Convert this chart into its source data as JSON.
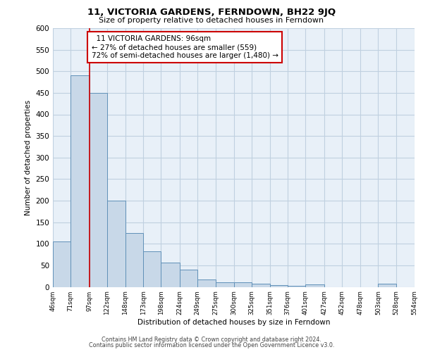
{
  "title": "11, VICTORIA GARDENS, FERNDOWN, BH22 9JQ",
  "subtitle": "Size of property relative to detached houses in Ferndown",
  "xlabel": "Distribution of detached houses by size in Ferndown",
  "ylabel": "Number of detached properties",
  "footer_line1": "Contains HM Land Registry data © Crown copyright and database right 2024.",
  "footer_line2": "Contains public sector information licensed under the Open Government Licence v3.0.",
  "annotation_line1": "11 VICTORIA GARDENS: 96sqm",
  "annotation_line2": "← 27% of detached houses are smaller (559)",
  "annotation_line3": "72% of semi-detached houses are larger (1,480) →",
  "property_sqm": 96,
  "bar_left_edges": [
    46,
    71,
    97,
    122,
    148,
    173,
    198,
    224,
    249,
    275,
    300,
    325,
    351,
    376,
    401,
    427,
    452,
    478,
    503,
    528
  ],
  "bar_widths": [
    25,
    26,
    25,
    26,
    25,
    25,
    26,
    25,
    26,
    25,
    25,
    26,
    25,
    25,
    26,
    25,
    26,
    25,
    25,
    26
  ],
  "bar_heights": [
    105,
    490,
    450,
    200,
    125,
    82,
    57,
    40,
    17,
    11,
    11,
    8,
    4,
    2,
    5,
    0,
    0,
    0,
    7,
    0
  ],
  "bar_color": "#c8d8e8",
  "bar_edge_color": "#6090b8",
  "vline_color": "#cc0000",
  "vline_x": 97,
  "annotation_box_edge_color": "#cc0000",
  "grid_color": "#c0d0e0",
  "bg_color": "#e8f0f8",
  "ylim": [
    0,
    600
  ],
  "yticks": [
    0,
    50,
    100,
    150,
    200,
    250,
    300,
    350,
    400,
    450,
    500,
    550,
    600
  ],
  "xtick_labels": [
    "46sqm",
    "71sqm",
    "97sqm",
    "122sqm",
    "148sqm",
    "173sqm",
    "198sqm",
    "224sqm",
    "249sqm",
    "275sqm",
    "300sqm",
    "325sqm",
    "351sqm",
    "376sqm",
    "401sqm",
    "427sqm",
    "452sqm",
    "478sqm",
    "503sqm",
    "528sqm",
    "554sqm"
  ]
}
